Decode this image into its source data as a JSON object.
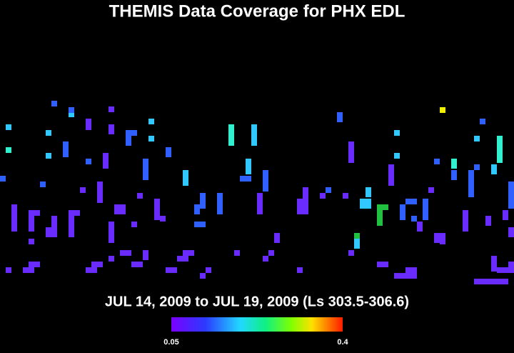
{
  "chart_data": {
    "type": "heatmap",
    "title": "THEMIS Data Coverage for PHX EDL",
    "subtitle": "JUL 14, 2009 to JUL 19, 2009 (Ls 303.5-306.6)",
    "clim": [
      0.05,
      0.4
    ],
    "cticks": [
      0.05,
      0.4
    ]
  }
}
